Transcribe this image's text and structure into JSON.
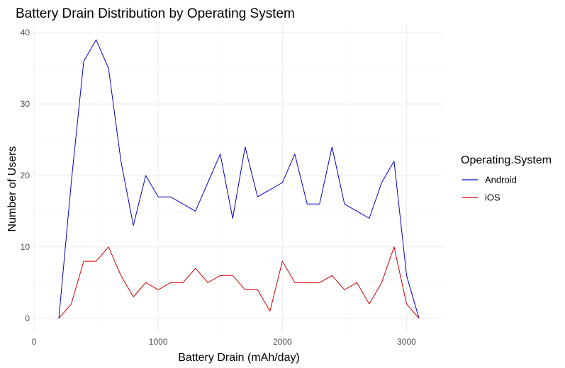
{
  "chart_data": {
    "type": "line",
    "title": "Battery Drain Distribution by Operating System",
    "xlabel": "Battery Drain (mAh/day)",
    "ylabel": "Number of Users",
    "xlim": [
      0,
      3300
    ],
    "ylim": [
      -2,
      41
    ],
    "x_ticks": [
      0,
      1000,
      2000,
      3000
    ],
    "y_ticks": [
      0,
      10,
      20,
      30,
      40
    ],
    "x_tick_labels": [
      "0",
      "1000",
      "2000",
      "3000"
    ],
    "y_tick_labels": [
      "0",
      "10",
      "20",
      "30",
      "40"
    ],
    "grid": true,
    "legend": {
      "title": "Operating.System",
      "placement": "right"
    },
    "x": [
      200,
      300,
      400,
      500,
      600,
      700,
      800,
      900,
      1000,
      1100,
      1200,
      1300,
      1400,
      1500,
      1600,
      1700,
      1800,
      1900,
      2000,
      2100,
      2200,
      2300,
      2400,
      2500,
      2600,
      2700,
      2800,
      2900,
      3000,
      3100
    ],
    "series": [
      {
        "name": "Android",
        "color": "#0000cd",
        "values": [
          0,
          19,
          36,
          39,
          35,
          22,
          13,
          20,
          17,
          17,
          16,
          15,
          19,
          23,
          14,
          24,
          17,
          18,
          19,
          23,
          16,
          16,
          24,
          16,
          15,
          14,
          19,
          22,
          6,
          0
        ]
      },
      {
        "name": "iOS",
        "color": "#cd0000",
        "values": [
          0,
          2,
          8,
          8,
          10,
          6,
          3,
          5,
          4,
          5,
          5,
          7,
          5,
          6,
          6,
          4,
          4,
          1,
          8,
          5,
          5,
          5,
          6,
          4,
          5,
          2,
          5,
          10,
          2,
          0
        ]
      }
    ]
  }
}
